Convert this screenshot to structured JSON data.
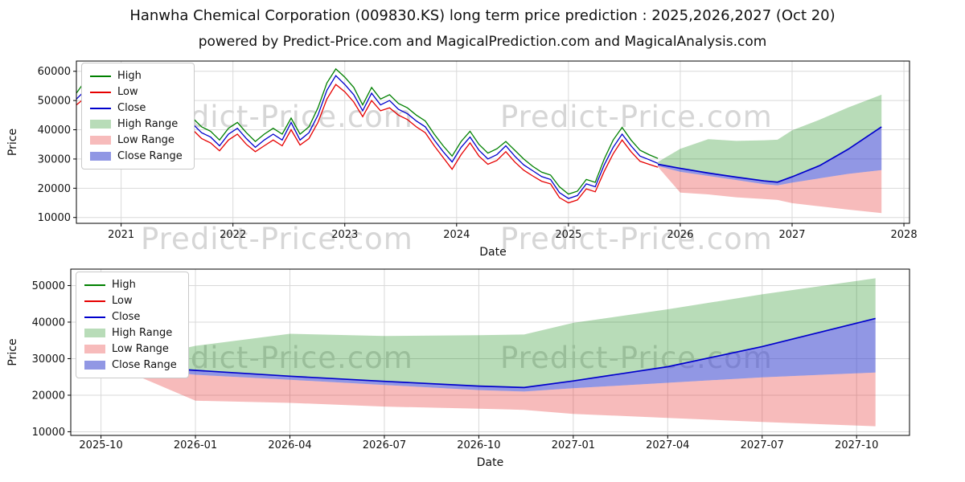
{
  "page": {
    "subtitle": "powered by Predict-Price.com and MagicalPrediction.com and MagicalAnalysis.com",
    "watermark": "Predict-Price.com"
  },
  "colors": {
    "high_line": "#008000",
    "low_line": "#e60000",
    "close_line": "#0000cc",
    "high_band": "rgba(0,128,0,0.28)",
    "low_band": "rgba(230,30,30,0.30)",
    "close_band": "rgba(55,65,205,0.55)",
    "grid": "#d9d9d9",
    "spine": "#000000",
    "watermark": "#d6d6d6"
  },
  "legend": {
    "items": [
      {
        "label": "High"
      },
      {
        "label": "Low"
      },
      {
        "label": "Close"
      },
      {
        "label": "High Range"
      },
      {
        "label": "Low Range"
      },
      {
        "label": "Close Range"
      }
    ]
  },
  "chart_data": [
    {
      "type": "line",
      "title": "Hanwha Chemical Corporation (009830.KS) long term price prediction : 2025,2026,2027 (Oct 20)",
      "xlabel": "Date",
      "ylabel": "Price",
      "grid": true,
      "legend_position": "upper left",
      "xlim": [
        2020.6,
        2028.05
      ],
      "ylim": [
        8000,
        63500
      ],
      "xticks": {
        "values": [
          2021,
          2022,
          2023,
          2024,
          2025,
          2026,
          2027,
          2028
        ],
        "labels": [
          "2021",
          "2022",
          "2023",
          "2024",
          "2025",
          "2026",
          "2027",
          "2028"
        ]
      },
      "yticks": [
        10000,
        20000,
        30000,
        40000,
        50000,
        60000
      ],
      "series": {
        "x": [
          2020.6,
          2020.68,
          2020.76,
          2020.84,
          2020.92,
          2021.0,
          2021.08,
          2021.16,
          2021.24,
          2021.32,
          2021.4,
          2021.48,
          2021.56,
          2021.64,
          2021.72,
          2021.8,
          2021.88,
          2021.96,
          2022.04,
          2022.12,
          2022.2,
          2022.28,
          2022.36,
          2022.44,
          2022.52,
          2022.6,
          2022.68,
          2022.76,
          2022.84,
          2022.92,
          2023.0,
          2023.08,
          2023.16,
          2023.24,
          2023.32,
          2023.4,
          2023.48,
          2023.56,
          2023.64,
          2023.72,
          2023.8,
          2023.88,
          2023.96,
          2024.04,
          2024.12,
          2024.2,
          2024.28,
          2024.36,
          2024.44,
          2024.52,
          2024.6,
          2024.68,
          2024.76,
          2024.84,
          2024.92,
          2025.0,
          2025.08,
          2025.16,
          2025.24,
          2025.32,
          2025.4,
          2025.48,
          2025.56,
          2025.64,
          2025.72,
          2025.8
        ],
        "high": [
          52500,
          56800,
          52500,
          54500,
          50500,
          47500,
          41000,
          46500,
          48000,
          45000,
          48500,
          49000,
          47500,
          44000,
          41000,
          39500,
          36500,
          40500,
          42500,
          39000,
          36000,
          38500,
          40500,
          38500,
          44000,
          38500,
          41000,
          47500,
          56000,
          60800,
          58000,
          54500,
          48500,
          54500,
          50500,
          52000,
          49000,
          47500,
          45000,
          43000,
          38500,
          34500,
          31000,
          36000,
          39500,
          35000,
          32000,
          33500,
          36000,
          33000,
          30000,
          27500,
          25500,
          24500,
          20500,
          18000,
          19000,
          23000,
          22000,
          30000,
          36500,
          40800,
          36500,
          33000,
          31500,
          30200
        ],
        "low": [
          48500,
          51000,
          48500,
          50000,
          46000,
          42500,
          36200,
          42000,
          43500,
          41000,
          44000,
          45500,
          43500,
          40000,
          37000,
          35500,
          32800,
          36500,
          38500,
          35000,
          32500,
          34500,
          36500,
          34500,
          40000,
          34800,
          37000,
          42500,
          50500,
          55500,
          53000,
          49500,
          44500,
          50000,
          46500,
          47500,
          45000,
          43500,
          41000,
          39000,
          34500,
          30500,
          26500,
          31500,
          35500,
          31000,
          28200,
          29500,
          32500,
          29000,
          26200,
          24200,
          22400,
          21500,
          16800,
          15000,
          16000,
          19800,
          18800,
          25800,
          31800,
          36500,
          32500,
          29200,
          28200,
          27200
        ],
        "close": [
          50500,
          53500,
          50500,
          52500,
          48500,
          45000,
          38500,
          44500,
          45500,
          43000,
          46500,
          47500,
          45500,
          42000,
          39000,
          37500,
          34500,
          38500,
          40500,
          37000,
          34000,
          36500,
          38500,
          36500,
          42500,
          36500,
          39000,
          45000,
          53500,
          58500,
          55500,
          52000,
          46500,
          52500,
          48500,
          50000,
          47000,
          45500,
          43000,
          41000,
          36500,
          32500,
          29000,
          34000,
          37500,
          33000,
          30000,
          31500,
          34500,
          31000,
          28000,
          26000,
          24000,
          23000,
          18500,
          16500,
          17500,
          21500,
          20500,
          28000,
          34000,
          38500,
          34500,
          31000,
          29800,
          28500
        ]
      },
      "forecast": {
        "x": [
          2025.8,
          2026.0,
          2026.25,
          2026.5,
          2026.75,
          2026.87,
          2027.0,
          2027.25,
          2027.5,
          2027.8
        ],
        "close": [
          28200,
          26800,
          25200,
          23800,
          22500,
          22100,
          23900,
          27800,
          33300,
          41000
        ],
        "high_top": [
          29000,
          33500,
          36800,
          36200,
          36400,
          36600,
          39800,
          43500,
          47600,
          52000
        ],
        "low_top": [
          27600,
          25600,
          24200,
          22800,
          21400,
          21000,
          21900,
          23400,
          24900,
          26200
        ],
        "low_bottom": [
          27300,
          18500,
          17900,
          16900,
          16300,
          16000,
          14900,
          13800,
          12700,
          11500
        ]
      }
    },
    {
      "type": "line",
      "title": "",
      "xlabel": "Date",
      "ylabel": "Price",
      "grid": true,
      "legend_position": "upper left",
      "xlim": [
        2025.67,
        2027.89
      ],
      "ylim": [
        9000,
        54500
      ],
      "xticks": {
        "values": [
          2025.75,
          2026.0,
          2026.25,
          2026.5,
          2026.75,
          2027.0,
          2027.25,
          2027.5,
          2027.75
        ],
        "labels": [
          "2025-10",
          "2026-01",
          "2026-04",
          "2026-07",
          "2026-10",
          "2027-01",
          "2027-04",
          "2027-07",
          "2027-10"
        ]
      },
      "yticks": [
        10000,
        20000,
        30000,
        40000,
        50000
      ],
      "forecast": {
        "x": [
          2025.8,
          2026.0,
          2026.25,
          2026.5,
          2026.75,
          2026.87,
          2027.0,
          2027.25,
          2027.5,
          2027.8
        ],
        "close": [
          28200,
          26800,
          25200,
          23800,
          22500,
          22100,
          23900,
          27800,
          33300,
          41000
        ],
        "high_top": [
          29000,
          33500,
          36800,
          36200,
          36400,
          36600,
          39800,
          43500,
          47600,
          52000
        ],
        "low_top": [
          27600,
          25600,
          24200,
          22800,
          21400,
          21000,
          21900,
          23400,
          24900,
          26200
        ],
        "low_bottom": [
          27300,
          18500,
          17900,
          16900,
          16300,
          16000,
          14900,
          13800,
          12700,
          11500
        ]
      }
    }
  ]
}
